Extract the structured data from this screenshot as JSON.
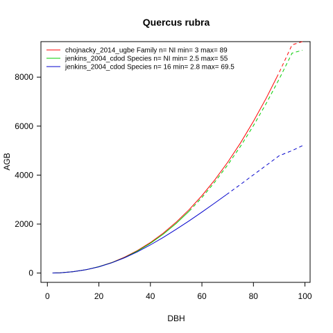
{
  "chart_data": {
    "type": "line",
    "title": "Quercus rubra",
    "xlabel": "DBH",
    "ylabel": "AGB",
    "xlim": [
      0,
      100
    ],
    "ylim": [
      0,
      9200
    ],
    "x_ticks": [
      0,
      20,
      40,
      60,
      80,
      100
    ],
    "y_ticks": [
      0,
      2000,
      4000,
      6000,
      8000
    ],
    "grid": false,
    "legend_position": "top-left",
    "series": [
      {
        "name": "chojnacky_2014_ugbe Family n= NI min= 3 max= 89",
        "color": "#ff0000",
        "x": [
          2,
          5,
          10,
          15,
          20,
          25,
          30,
          35,
          40,
          45,
          50,
          55,
          60,
          65,
          70,
          75,
          80,
          85,
          89,
          90,
          95,
          99
        ],
        "y": [
          2,
          12,
          55,
          135,
          260,
          430,
          650,
          920,
          1245,
          1630,
          2075,
          2585,
          3160,
          3805,
          4525,
          5320,
          6195,
          7150,
          7980,
          8190,
          9320,
          10300
        ],
        "solid_until_x": 89
      },
      {
        "name": "jenkins_2004_cdod Species n= NI min= 2.5 max= 55",
        "color": "#00cc00",
        "x": [
          2,
          5,
          10,
          15,
          20,
          25,
          30,
          35,
          40,
          45,
          50,
          55,
          60,
          65,
          70,
          75,
          80,
          85,
          90,
          95,
          99
        ],
        "y": [
          2,
          12,
          55,
          135,
          260,
          425,
          635,
          900,
          1215,
          1590,
          2025,
          2525,
          3085,
          3715,
          4415,
          5180,
          6020,
          6935,
          7920,
          8980,
          9100
        ],
        "solid_until_x": 55
      },
      {
        "name": "jenkins_2004_cdod Species n= 16 min= 2.8 max= 69.5",
        "color": "#0000cc",
        "x": [
          2,
          5,
          10,
          15,
          20,
          25,
          30,
          35,
          40,
          45,
          50,
          55,
          60,
          65,
          69.5,
          75,
          80,
          85,
          90,
          95,
          99
        ],
        "y": [
          2,
          12,
          55,
          135,
          255,
          420,
          625,
          870,
          1150,
          1455,
          1785,
          2130,
          2490,
          2860,
          3200,
          3620,
          4010,
          4400,
          4790,
          5000,
          5200
        ],
        "solid_until_x": 69.5
      }
    ]
  }
}
